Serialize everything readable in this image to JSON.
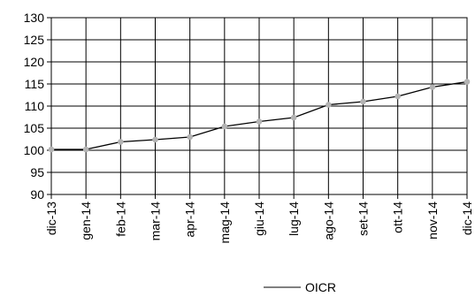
{
  "chart_data": {
    "type": "line",
    "categories": [
      "dic-13",
      "gen-14",
      "feb-14",
      "mar-14",
      "apr-14",
      "mag-14",
      "giu-14",
      "lug-14",
      "ago-14",
      "set-14",
      "ott-14",
      "nov-14",
      "dic-14"
    ],
    "series": [
      {
        "name": "OICR",
        "values": [
          100.2,
          100.2,
          101.9,
          102.4,
          103.0,
          105.4,
          106.5,
          107.4,
          110.3,
          111.0,
          112.2,
          114.3,
          115.5
        ],
        "line_color": "#000000",
        "marker_color": "#b3b3b3"
      }
    ],
    "title": "",
    "xlabel": "",
    "ylabel": "",
    "ylim": [
      90,
      130
    ],
    "y_ticks": [
      "90",
      "95",
      "100",
      "105",
      "110",
      "115",
      "120",
      "125",
      "130"
    ],
    "grid": true,
    "legend": {
      "position": "bottom-right",
      "entries": [
        "OICR"
      ]
    }
  }
}
